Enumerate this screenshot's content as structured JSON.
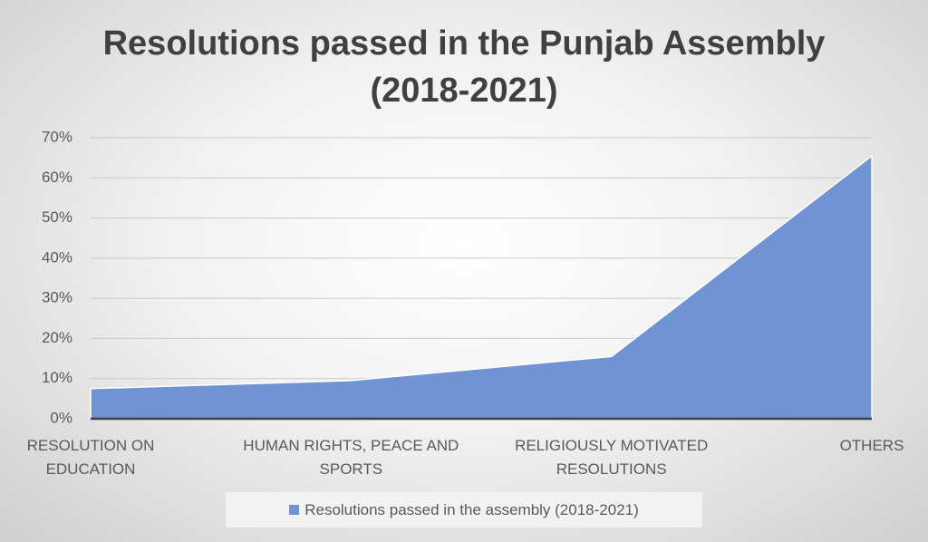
{
  "chart_data": {
    "type": "area",
    "title": "Resolutions passed in the Punjab Assembly (2018-2021)",
    "categories": [
      "RESOLUTION ON EDUCATION",
      "HUMAN RIGHTS, PEACE AND SPORTS",
      "RELIGIOUSLY MOTIVATED RESOLUTIONS",
      "OTHERS"
    ],
    "series": [
      {
        "name": "Resolutions passed in the assembly (2018-2021)",
        "color": "#7094d3",
        "values": [
          7.5,
          9.5,
          15.5,
          65.5
        ]
      }
    ],
    "ylim": [
      0,
      70
    ],
    "yticks": [
      {
        "value": 0,
        "label": "0%"
      },
      {
        "value": 10,
        "label": "10%"
      },
      {
        "value": 20,
        "label": "20%"
      },
      {
        "value": 30,
        "label": "30%"
      },
      {
        "value": 40,
        "label": "40%"
      },
      {
        "value": 50,
        "label": "50%"
      },
      {
        "value": 60,
        "label": "60%"
      },
      {
        "value": 70,
        "label": "70%"
      }
    ],
    "grid": true,
    "legend": "bottom"
  }
}
